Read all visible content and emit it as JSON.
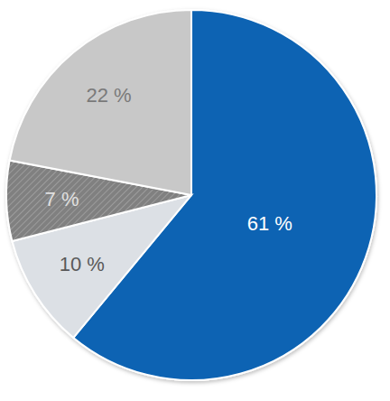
{
  "chart_data": {
    "type": "pie",
    "values": [
      61,
      10,
      7,
      22
    ],
    "value_labels": [
      "61 %",
      "10 %",
      "7 %",
      "22 %"
    ],
    "colors": [
      "#0b63b3",
      "#dce0e5",
      "#808080",
      "#c8c8c8"
    ],
    "data_labels": true
  }
}
